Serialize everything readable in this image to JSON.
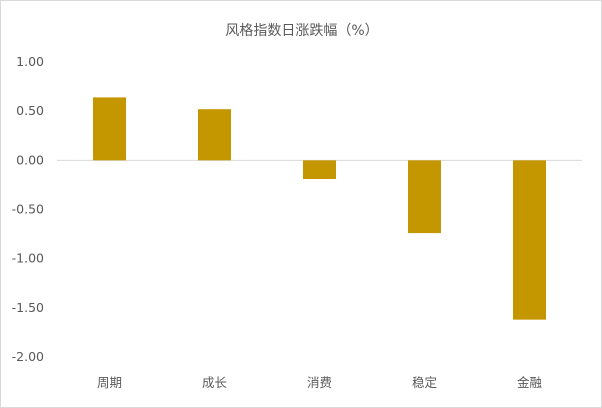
{
  "chart_data": {
    "type": "bar",
    "title": "风格指数日涨跌幅（%）",
    "categories": [
      "周期",
      "成长",
      "消费",
      "稳定",
      "金融"
    ],
    "values": [
      0.64,
      0.52,
      -0.19,
      -0.74,
      -1.62
    ],
    "ylim": [
      -2.0,
      1.0
    ],
    "yticks": [
      "1.00",
      "0.50",
      "0.00",
      "-0.50",
      "-1.00",
      "-1.50",
      "-2.00"
    ],
    "bar_color": "#C49600",
    "grid": false,
    "legend": "none"
  }
}
